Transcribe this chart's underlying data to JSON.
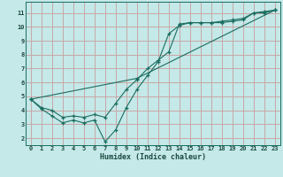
{
  "xlabel": "Humidex (Indice chaleur)",
  "xlim": [
    -0.5,
    23.5
  ],
  "ylim": [
    1.5,
    11.8
  ],
  "xticks": [
    0,
    1,
    2,
    3,
    4,
    5,
    6,
    7,
    8,
    9,
    10,
    11,
    12,
    13,
    14,
    15,
    16,
    17,
    18,
    19,
    20,
    21,
    22,
    23
  ],
  "yticks": [
    2,
    3,
    4,
    5,
    6,
    7,
    8,
    9,
    10,
    11
  ],
  "bg_color": "#c5e8e8",
  "grid_color": "#c8a8a8",
  "line_color": "#1a6e60",
  "line1_x": [
    0,
    1,
    2,
    3,
    4,
    5,
    6,
    7,
    8,
    9,
    10,
    11,
    12,
    13,
    14,
    15,
    16,
    17,
    18,
    19,
    20,
    21,
    22,
    23
  ],
  "line1_y": [
    4.8,
    4.1,
    3.6,
    3.1,
    3.3,
    3.1,
    3.3,
    1.75,
    2.6,
    4.2,
    5.5,
    6.5,
    7.5,
    9.5,
    10.1,
    10.3,
    10.3,
    10.3,
    10.3,
    10.4,
    10.5,
    11.0,
    11.0,
    11.2
  ],
  "line2_x": [
    0,
    1,
    2,
    3,
    4,
    5,
    6,
    7,
    8,
    9,
    10,
    11,
    12,
    13,
    14,
    15,
    16,
    17,
    18,
    19,
    20,
    21,
    22,
    23
  ],
  "line2_y": [
    4.8,
    4.2,
    4.0,
    3.5,
    3.6,
    3.5,
    3.7,
    3.5,
    4.5,
    5.5,
    6.2,
    7.0,
    7.6,
    8.2,
    10.2,
    10.3,
    10.3,
    10.3,
    10.4,
    10.5,
    10.6,
    11.0,
    11.1,
    11.2
  ],
  "line3_x": [
    0,
    10,
    23
  ],
  "line3_y": [
    4.8,
    6.3,
    11.2
  ]
}
